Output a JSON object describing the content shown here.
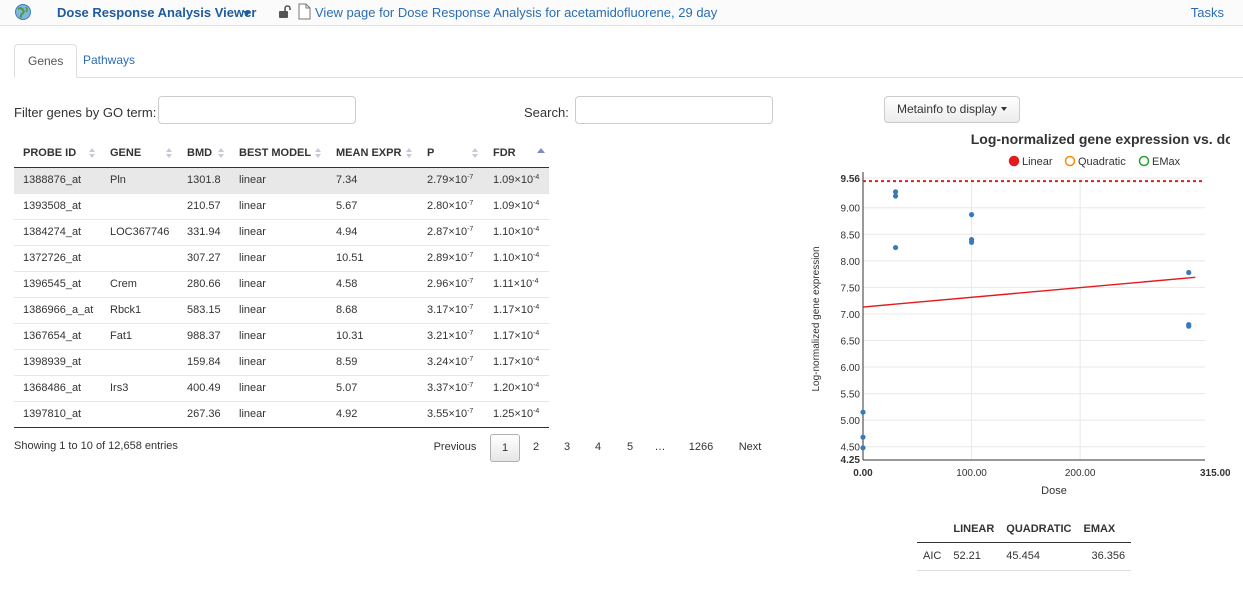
{
  "nav": {
    "title": "Dose Response Analysis Viewer",
    "view_link": "View page for Dose Response Analysis for acetamidofluorene, 29 day",
    "tasks": "Tasks"
  },
  "tabs": [
    {
      "label": "Genes"
    },
    {
      "label": "Pathways"
    }
  ],
  "filter": {
    "label": "Filter genes by GO term:",
    "value": ""
  },
  "search": {
    "label": "Search:",
    "value": ""
  },
  "table": {
    "headers": [
      "PROBE ID",
      "GENE",
      "BMD",
      "BEST MODEL",
      "MEAN EXPR",
      "P",
      "FDR"
    ],
    "rows": [
      {
        "probe": "1388876_at",
        "gene": "Pln",
        "bmd": "1301.8",
        "model": "linear",
        "mean": "7.34",
        "p_mant": "2.79×10",
        "p_exp": "-7",
        "fdr_mant": "1.09×10",
        "fdr_exp": "-4"
      },
      {
        "probe": "1393508_at",
        "gene": "",
        "bmd": "210.57",
        "model": "linear",
        "mean": "5.67",
        "p_mant": "2.80×10",
        "p_exp": "-7",
        "fdr_mant": "1.09×10",
        "fdr_exp": "-4"
      },
      {
        "probe": "1384274_at",
        "gene": "LOC367746",
        "bmd": "331.94",
        "model": "linear",
        "mean": "4.94",
        "p_mant": "2.87×10",
        "p_exp": "-7",
        "fdr_mant": "1.10×10",
        "fdr_exp": "-4"
      },
      {
        "probe": "1372726_at",
        "gene": "",
        "bmd": "307.27",
        "model": "linear",
        "mean": "10.51",
        "p_mant": "2.89×10",
        "p_exp": "-7",
        "fdr_mant": "1.10×10",
        "fdr_exp": "-4"
      },
      {
        "probe": "1396545_at",
        "gene": "Crem",
        "bmd": "280.66",
        "model": "linear",
        "mean": "4.58",
        "p_mant": "2.96×10",
        "p_exp": "-7",
        "fdr_mant": "1.11×10",
        "fdr_exp": "-4"
      },
      {
        "probe": "1386966_a_at",
        "gene": "Rbck1",
        "bmd": "583.15",
        "model": "linear",
        "mean": "8.68",
        "p_mant": "3.17×10",
        "p_exp": "-7",
        "fdr_mant": "1.17×10",
        "fdr_exp": "-4"
      },
      {
        "probe": "1367654_at",
        "gene": "Fat1",
        "bmd": "988.37",
        "model": "linear",
        "mean": "10.31",
        "p_mant": "3.21×10",
        "p_exp": "-7",
        "fdr_mant": "1.17×10",
        "fdr_exp": "-4"
      },
      {
        "probe": "1398939_at",
        "gene": "",
        "bmd": "159.84",
        "model": "linear",
        "mean": "8.59",
        "p_mant": "3.24×10",
        "p_exp": "-7",
        "fdr_mant": "1.17×10",
        "fdr_exp": "-4"
      },
      {
        "probe": "1368486_at",
        "gene": "Irs3",
        "bmd": "400.49",
        "model": "linear",
        "mean": "5.07",
        "p_mant": "3.37×10",
        "p_exp": "-7",
        "fdr_mant": "1.20×10",
        "fdr_exp": "-4"
      },
      {
        "probe": "1397810_at",
        "gene": "",
        "bmd": "267.36",
        "model": "linear",
        "mean": "4.92",
        "p_mant": "3.55×10",
        "p_exp": "-7",
        "fdr_mant": "1.25×10",
        "fdr_exp": "-4"
      }
    ],
    "linked_genes": [
      "Pln",
      "LOC367746",
      "Crem",
      "Rbck1",
      "Fat1"
    ]
  },
  "showing": "Showing 1 to 10 of 12,658 entries",
  "pagination": {
    "previous": "Previous",
    "pages": [
      "1",
      "2",
      "3",
      "4",
      "5",
      "…",
      "1266"
    ],
    "next": "Next",
    "current": "1"
  },
  "metainfo_button": "Metainfo to display",
  "chart_data": {
    "type": "scatter",
    "title": "Log-normalized gene expression vs. dose",
    "xlabel": "Dose",
    "ylabel": "Log-normalized gene expression",
    "legend": [
      {
        "name": "Linear",
        "color": "#e41a1c",
        "filled": true
      },
      {
        "name": "Quadratic",
        "color": "#ff8c00",
        "filled": false
      },
      {
        "name": "EMax",
        "color": "#2ca02c",
        "filled": false
      }
    ],
    "legend_placement": "top",
    "xlim": [
      0,
      315
    ],
    "ylim": [
      4.25,
      9.56
    ],
    "xticks": [
      "0.00",
      "100.00",
      "200.00",
      "315.00"
    ],
    "xtick_values": [
      0,
      100,
      200,
      315
    ],
    "yticks": [
      "4.25",
      "4.50",
      "5.00",
      "5.50",
      "6.00",
      "6.50",
      "7.00",
      "7.50",
      "8.00",
      "8.50",
      "9.00",
      "9.56"
    ],
    "ytick_values": [
      4.25,
      4.5,
      5.0,
      5.5,
      6.0,
      6.5,
      7.0,
      7.5,
      8.0,
      8.5,
      9.0,
      9.56
    ],
    "bold_ticks": [
      "0.00",
      "315.00",
      "4.25",
      "9.56"
    ],
    "grid": true,
    "points": [
      {
        "x": 0,
        "y": 5.15
      },
      {
        "x": 0,
        "y": 4.68
      },
      {
        "x": 0,
        "y": 4.48
      },
      {
        "x": 30,
        "y": 9.3
      },
      {
        "x": 30,
        "y": 9.22
      },
      {
        "x": 30,
        "y": 8.25
      },
      {
        "x": 100,
        "y": 8.87
      },
      {
        "x": 100,
        "y": 8.4
      },
      {
        "x": 100,
        "y": 8.35
      },
      {
        "x": 300,
        "y": 7.78
      },
      {
        "x": 300,
        "y": 6.8
      },
      {
        "x": 300,
        "y": 6.77
      }
    ],
    "point_color": "#3a7ab8",
    "fit_line": {
      "name": "Linear",
      "x": [
        0,
        306
      ],
      "y": [
        7.13,
        7.69
      ],
      "color": "#e41a1c"
    },
    "max_line": {
      "y": 9.5,
      "color": "#e41a1c",
      "style": "dotted"
    }
  },
  "aic": {
    "headers": [
      "",
      "LINEAR",
      "QUADRATIC",
      "EMAX"
    ],
    "row_label": "AIC",
    "values": [
      "52.21",
      "45.454",
      "36.356"
    ]
  }
}
